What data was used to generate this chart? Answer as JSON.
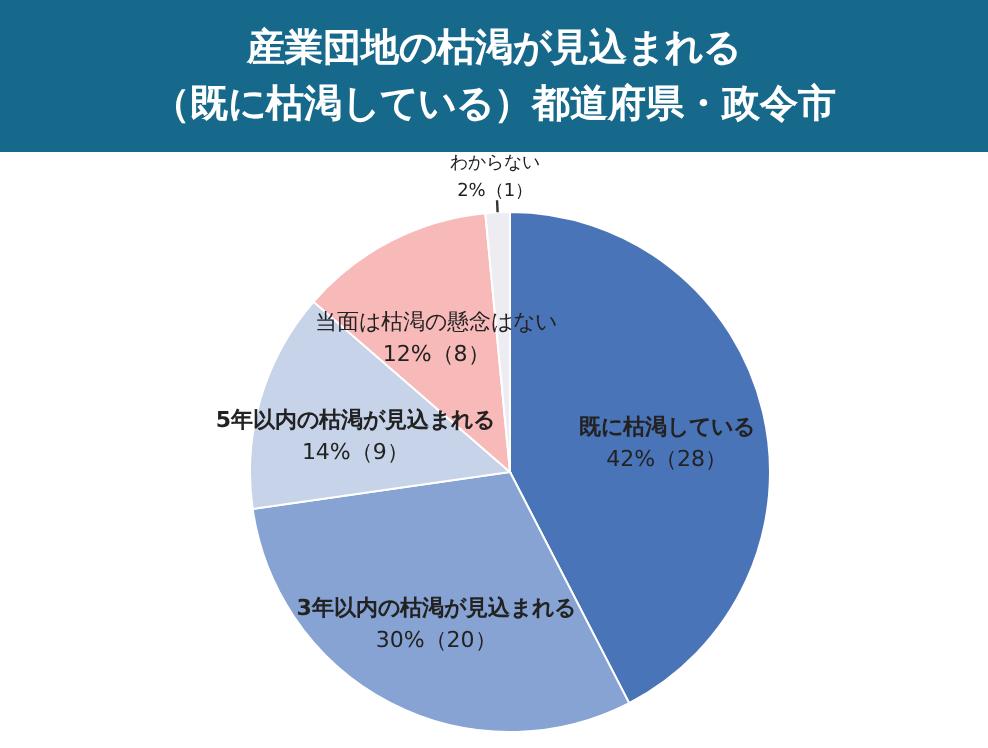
{
  "chart_data": {
    "type": "pie",
    "title": "産業団地の枯渇が見込まれる",
    "subtitle": "（既に枯渇している）都道府県・政令市",
    "categories": [
      "既に枯渇している",
      "3年以内の枯渇が見込まれる",
      "5年以内の枯渇が見込まれる",
      "当面は枯渇の懸念はない",
      "わからない"
    ],
    "values": [
      28,
      20,
      9,
      8,
      1
    ],
    "value_labels": [
      "42%（28）",
      "30%（20）",
      "14%（9）",
      "12%（8）",
      "2%（1）"
    ],
    "colors": [
      "#4a74b8",
      "#86a3d3",
      "#c6d3e9",
      "#f8b9b9",
      "#ececf2"
    ]
  }
}
